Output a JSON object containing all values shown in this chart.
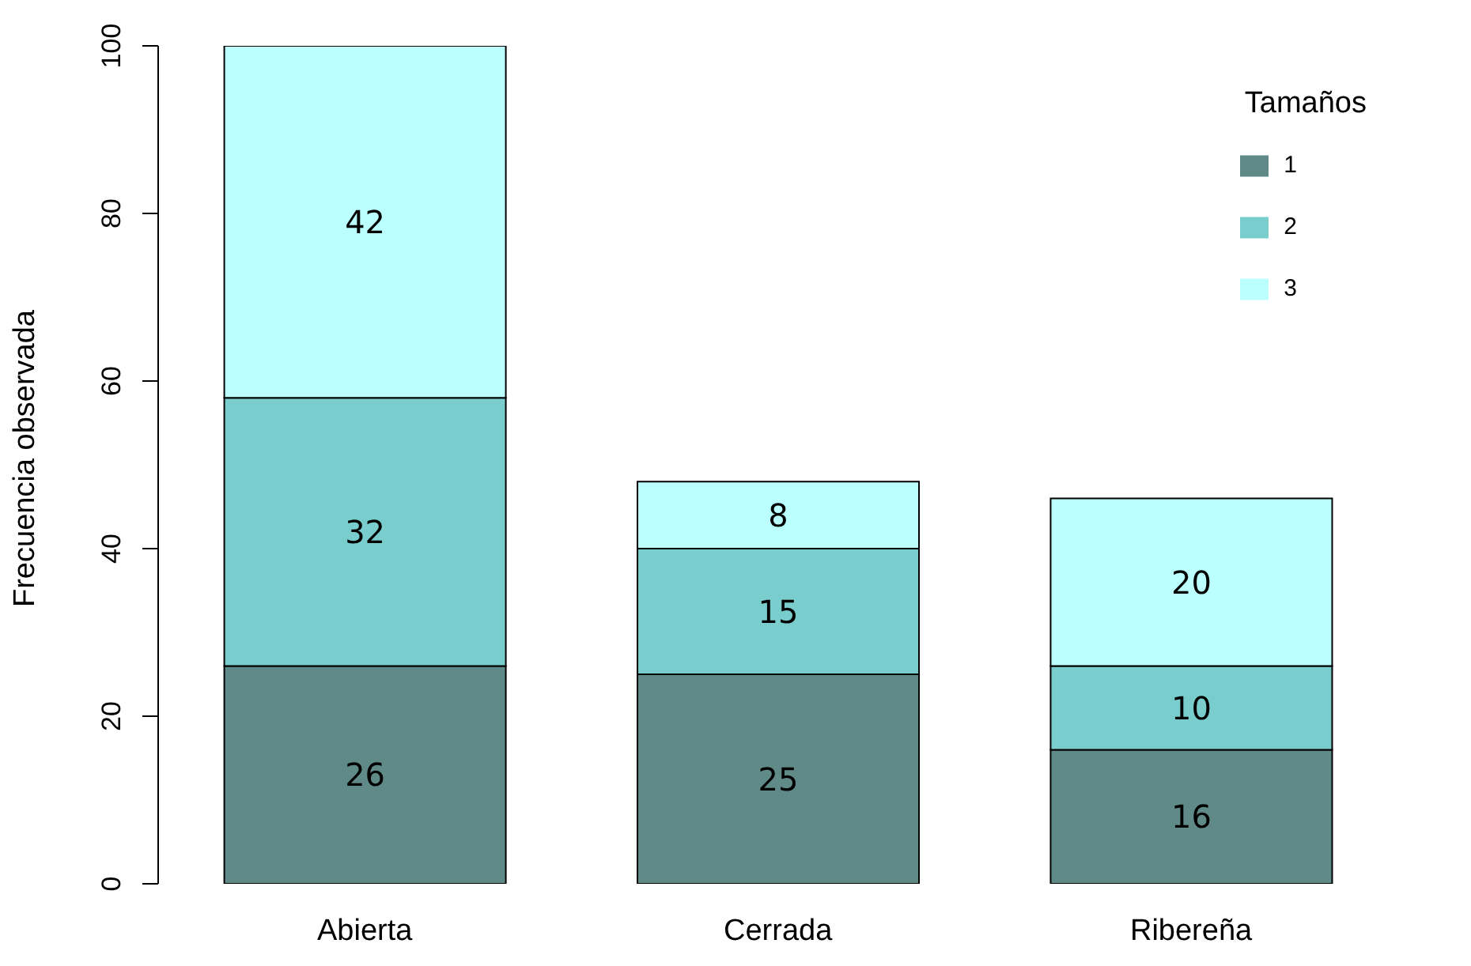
{
  "chart_data": {
    "type": "bar",
    "stacked": true,
    "ylabel": "Frecuencia observada",
    "legend_title": "Tamaños",
    "categories": [
      "Abierta",
      "Cerrada",
      "Ribereña"
    ],
    "series": [
      {
        "name": "1",
        "color": "#5f8a87",
        "values": [
          26,
          25,
          16
        ]
      },
      {
        "name": "2",
        "color": "#79cdcd",
        "values": [
          32,
          15,
          10
        ]
      },
      {
        "name": "3",
        "color": "#bbffff",
        "values": [
          42,
          8,
          20
        ]
      }
    ],
    "ylim": [
      0,
      100
    ],
    "yticks": [
      0,
      20,
      40,
      60,
      80,
      100
    ],
    "grid": false,
    "legend": "top right",
    "data_labels": true
  }
}
